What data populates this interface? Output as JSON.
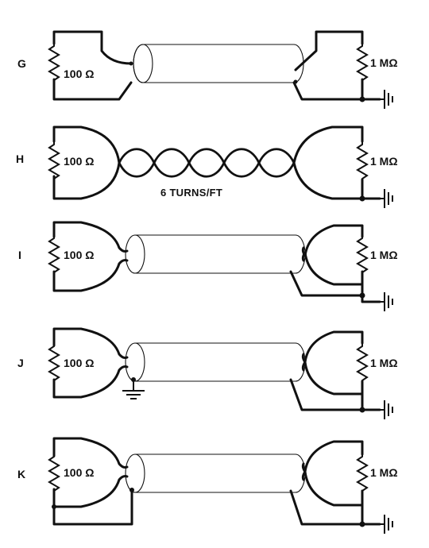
{
  "circuits": [
    {
      "id": "G",
      "label": "G",
      "source_resistor": "100 Ω",
      "load_resistor": "1 MΩ"
    },
    {
      "id": "H",
      "label": "H",
      "source_resistor": "100 Ω",
      "load_resistor": "1 MΩ",
      "note": "6 TURNS/FT"
    },
    {
      "id": "I",
      "label": "I",
      "source_resistor": "100 Ω",
      "load_resistor": "1 MΩ"
    },
    {
      "id": "J",
      "label": "J",
      "source_resistor": "100 Ω",
      "load_resistor": "1 MΩ"
    },
    {
      "id": "K",
      "label": "K",
      "source_resistor": "100 Ω",
      "load_resistor": "1 MΩ"
    }
  ]
}
